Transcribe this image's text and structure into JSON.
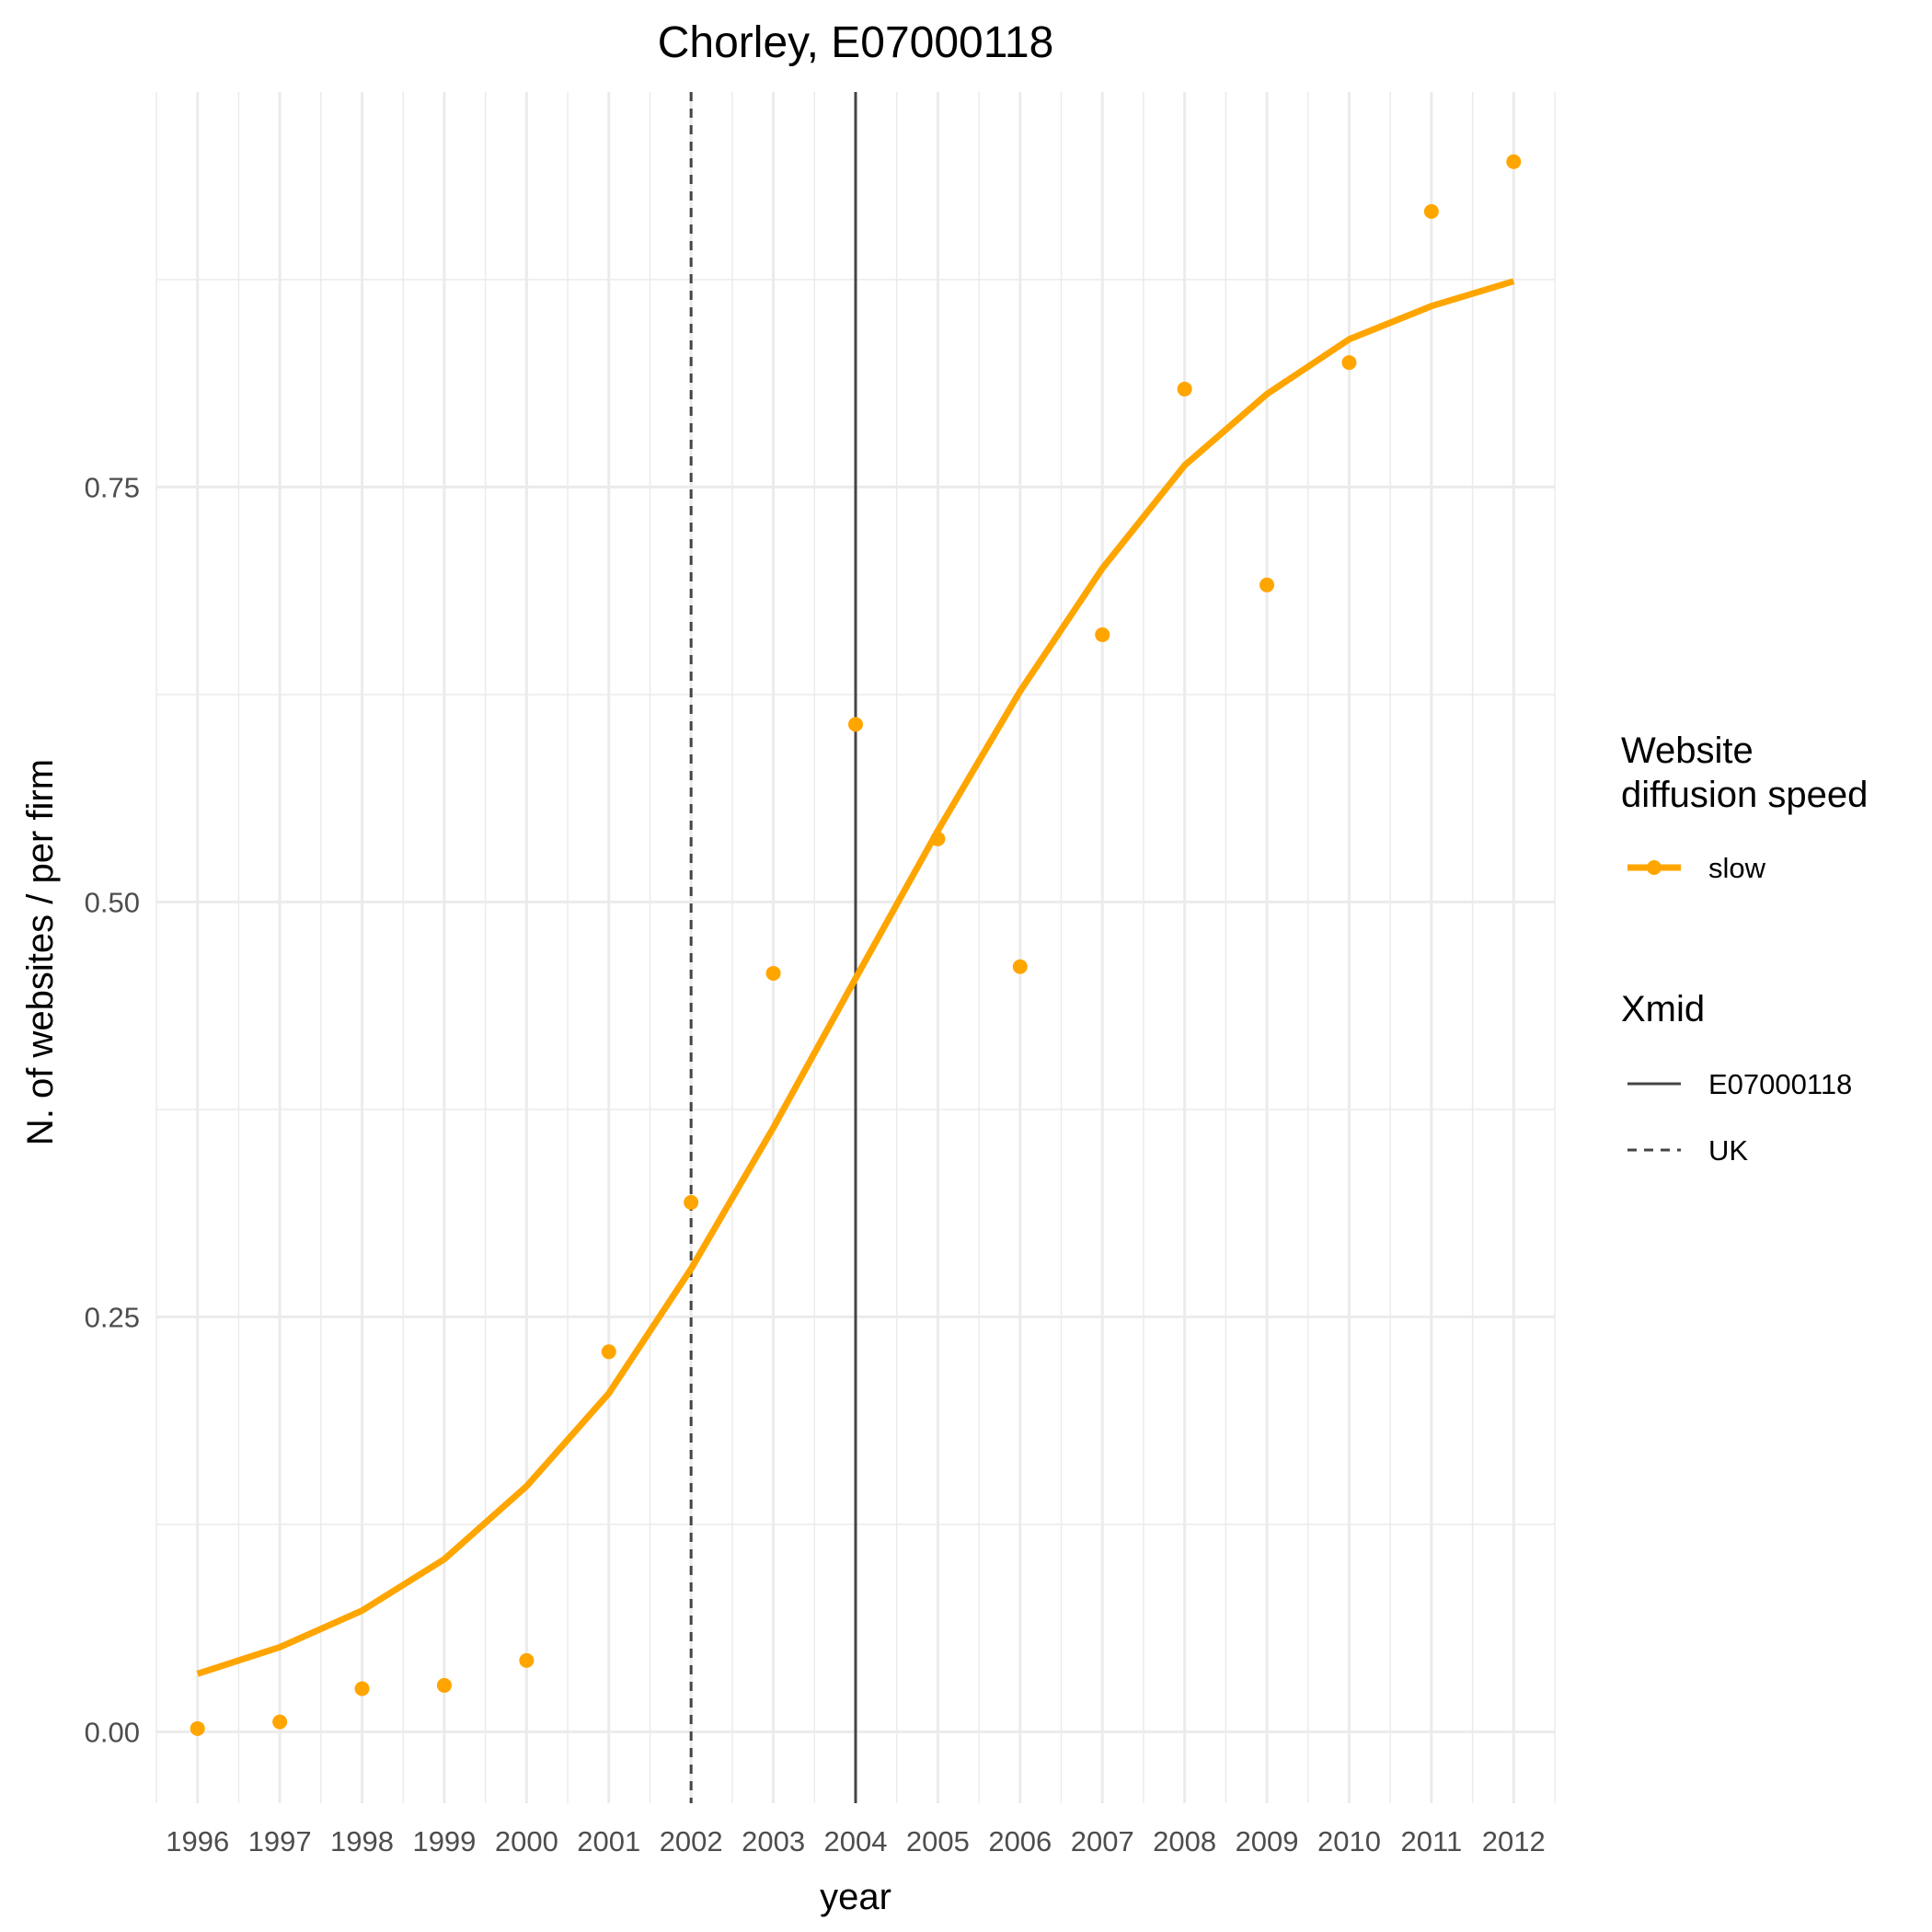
{
  "chart_data": {
    "type": "line",
    "title": "Chorley, E07000118",
    "xlabel": "year",
    "ylabel": "N. of websites / per firm",
    "categories": [
      "1996",
      "1997",
      "1998",
      "1999",
      "2000",
      "2001",
      "2002",
      "2003",
      "2004",
      "2005",
      "2006",
      "2007",
      "2008",
      "2009",
      "2010",
      "2011",
      "2012"
    ],
    "x_range": [
      1995.5,
      2012.5
    ],
    "ylim": [
      -0.043,
      0.988
    ],
    "y_ticks": [
      0,
      0.25,
      0.5,
      0.75
    ],
    "y_tick_labels": [
      "0.00",
      "0.25",
      "0.50",
      "0.75"
    ],
    "grid": true,
    "series": [
      {
        "name": "slow",
        "role": "observed points",
        "color": "#FFA500",
        "x": [
          1996,
          1997,
          1998,
          1999,
          2000,
          2001,
          2002,
          2003,
          2004,
          2005,
          2006,
          2007,
          2008,
          2009,
          2010,
          2011,
          2012
        ],
        "values": [
          0.002,
          0.006,
          0.026,
          0.028,
          0.043,
          0.229,
          0.319,
          0.457,
          0.607,
          0.538,
          0.461,
          0.661,
          0.809,
          0.691,
          0.825,
          0.916,
          0.946
        ]
      },
      {
        "name": "slow",
        "role": "fitted curve",
        "color": "#FFA500",
        "x": [
          1996,
          1997,
          1998,
          1999,
          2000,
          2001,
          2002,
          2003,
          2004,
          2005,
          2006,
          2007,
          2008,
          2009,
          2010,
          2011,
          2012
        ],
        "values": [
          0.035,
          0.051,
          0.073,
          0.104,
          0.148,
          0.204,
          0.279,
          0.364,
          0.454,
          0.543,
          0.627,
          0.701,
          0.763,
          0.806,
          0.839,
          0.859,
          0.874
        ]
      }
    ],
    "vlines": [
      {
        "name": "E07000118",
        "x": 2004,
        "style": "solid",
        "color": "#444444"
      },
      {
        "name": "UK",
        "x": 2002,
        "style": "dashed",
        "color": "#444444"
      }
    ],
    "legend": {
      "position": "right",
      "groups": [
        {
          "title_lines": [
            "Website",
            "diffusion speed"
          ],
          "items": [
            {
              "label": "slow",
              "style": "line-point",
              "color": "#FFA500"
            }
          ]
        },
        {
          "title_lines": [
            "Xmid"
          ],
          "items": [
            {
              "label": "E07000118",
              "style": "solid",
              "color": "#444444"
            },
            {
              "label": "UK",
              "style": "dashed",
              "color": "#444444"
            }
          ]
        }
      ]
    }
  }
}
